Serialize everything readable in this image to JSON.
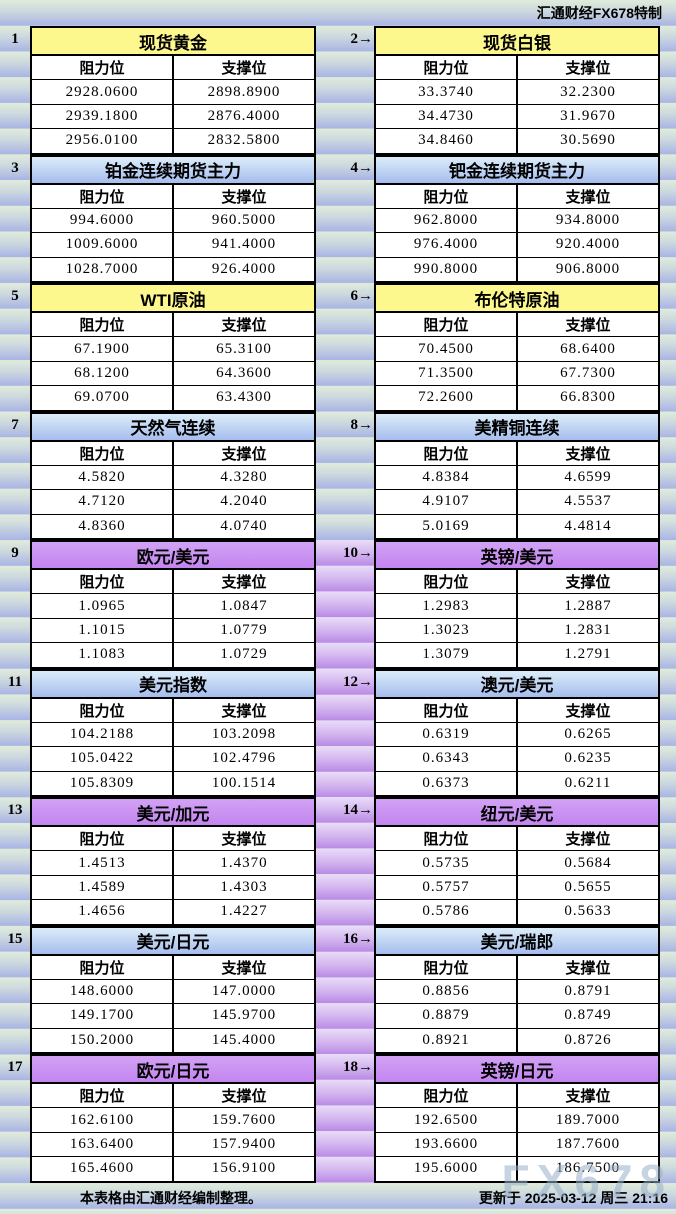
{
  "header": {
    "brand": "汇通财经FX678特制"
  },
  "labels": {
    "resistance": "阻力位",
    "support": "支撑位"
  },
  "panels": [
    {
      "num": "1",
      "title": "现货黄金",
      "color": "yellow",
      "rows": [
        [
          "2928.0600",
          "2898.8900"
        ],
        [
          "2939.1800",
          "2876.4000"
        ],
        [
          "2956.0100",
          "2832.5800"
        ]
      ]
    },
    {
      "num": "2→",
      "title": "现货白银",
      "color": "yellow",
      "rows": [
        [
          "33.3740",
          "32.2300"
        ],
        [
          "34.4730",
          "31.9670"
        ],
        [
          "34.8460",
          "30.5690"
        ]
      ]
    },
    {
      "num": "3",
      "title": "铂金连续期货主力",
      "color": "blue",
      "rows": [
        [
          "994.6000",
          "960.5000"
        ],
        [
          "1009.6000",
          "941.4000"
        ],
        [
          "1028.7000",
          "926.4000"
        ]
      ]
    },
    {
      "num": "4→",
      "title": "钯金连续期货主力",
      "color": "blue",
      "rows": [
        [
          "962.8000",
          "934.8000"
        ],
        [
          "976.4000",
          "920.4000"
        ],
        [
          "990.8000",
          "906.8000"
        ]
      ]
    },
    {
      "num": "5",
      "title": "WTI原油",
      "color": "yellow",
      "rows": [
        [
          "67.1900",
          "65.3100"
        ],
        [
          "68.1200",
          "64.3600"
        ],
        [
          "69.0700",
          "63.4300"
        ]
      ]
    },
    {
      "num": "6→",
      "title": "布伦特原油",
      "color": "yellow",
      "rows": [
        [
          "70.4500",
          "68.6400"
        ],
        [
          "71.3500",
          "67.7300"
        ],
        [
          "72.2600",
          "66.8300"
        ]
      ]
    },
    {
      "num": "7",
      "title": "天然气连续",
      "color": "blue",
      "rows": [
        [
          "4.5820",
          "4.3280"
        ],
        [
          "4.7120",
          "4.2040"
        ],
        [
          "4.8360",
          "4.0740"
        ]
      ]
    },
    {
      "num": "8→",
      "title": "美精铜连续",
      "color": "blue",
      "rows": [
        [
          "4.8384",
          "4.6599"
        ],
        [
          "4.9107",
          "4.5537"
        ],
        [
          "5.0169",
          "4.4814"
        ]
      ]
    },
    {
      "num": "9",
      "title": "欧元/美元",
      "color": "purple",
      "rows": [
        [
          "1.0965",
          "1.0847"
        ],
        [
          "1.1015",
          "1.0779"
        ],
        [
          "1.1083",
          "1.0729"
        ]
      ]
    },
    {
      "num": "10→",
      "title": "英镑/美元",
      "color": "purple",
      "rows": [
        [
          "1.2983",
          "1.2887"
        ],
        [
          "1.3023",
          "1.2831"
        ],
        [
          "1.3079",
          "1.2791"
        ]
      ]
    },
    {
      "num": "11",
      "title": "美元指数",
      "color": "blue",
      "rows": [
        [
          "104.2188",
          "103.2098"
        ],
        [
          "105.0422",
          "102.4796"
        ],
        [
          "105.8309",
          "100.1514"
        ]
      ]
    },
    {
      "num": "12→",
      "title": "澳元/美元",
      "color": "blue",
      "rows": [
        [
          "0.6319",
          "0.6265"
        ],
        [
          "0.6343",
          "0.6235"
        ],
        [
          "0.6373",
          "0.6211"
        ]
      ]
    },
    {
      "num": "13",
      "title": "美元/加元",
      "color": "purple",
      "rows": [
        [
          "1.4513",
          "1.4370"
        ],
        [
          "1.4589",
          "1.4303"
        ],
        [
          "1.4656",
          "1.4227"
        ]
      ]
    },
    {
      "num": "14→",
      "title": "纽元/美元",
      "color": "purple",
      "rows": [
        [
          "0.5735",
          "0.5684"
        ],
        [
          "0.5757",
          "0.5655"
        ],
        [
          "0.5786",
          "0.5633"
        ]
      ]
    },
    {
      "num": "15",
      "title": "美元/日元",
      "color": "blue",
      "rows": [
        [
          "148.6000",
          "147.0000"
        ],
        [
          "149.1700",
          "145.9700"
        ],
        [
          "150.2000",
          "145.4000"
        ]
      ]
    },
    {
      "num": "16→",
      "title": "美元/瑞郎",
      "color": "blue",
      "rows": [
        [
          "0.8856",
          "0.8791"
        ],
        [
          "0.8879",
          "0.8749"
        ],
        [
          "0.8921",
          "0.8726"
        ]
      ]
    },
    {
      "num": "17",
      "title": "欧元/日元",
      "color": "purple",
      "rows": [
        [
          "162.6100",
          "159.7600"
        ],
        [
          "163.6400",
          "157.9400"
        ],
        [
          "165.4600",
          "156.9100"
        ]
      ]
    },
    {
      "num": "18→",
      "title": "英镑/日元",
      "color": "purple",
      "rows": [
        [
          "192.6500",
          "189.7000"
        ],
        [
          "193.6600",
          "187.7600"
        ],
        [
          "195.6000",
          "186.7500"
        ]
      ]
    }
  ],
  "footer": {
    "note": "本表格由汇通财经编制整理。",
    "updated": "更新于 2025-03-12 周三 21:16",
    "watermark": "FX678"
  },
  "colors": {
    "title_yellow": "#fdf88e",
    "title_blue_top": "#dcedf9",
    "title_blue_bottom": "#a6bdee",
    "title_purple": "#c98ff2",
    "stripe_green": "#dfead9",
    "stripe_blue": "#a9b4e5",
    "stripe_purple": "#b98ae6",
    "border": "#000000",
    "watermark_gray": "#98aec8"
  }
}
